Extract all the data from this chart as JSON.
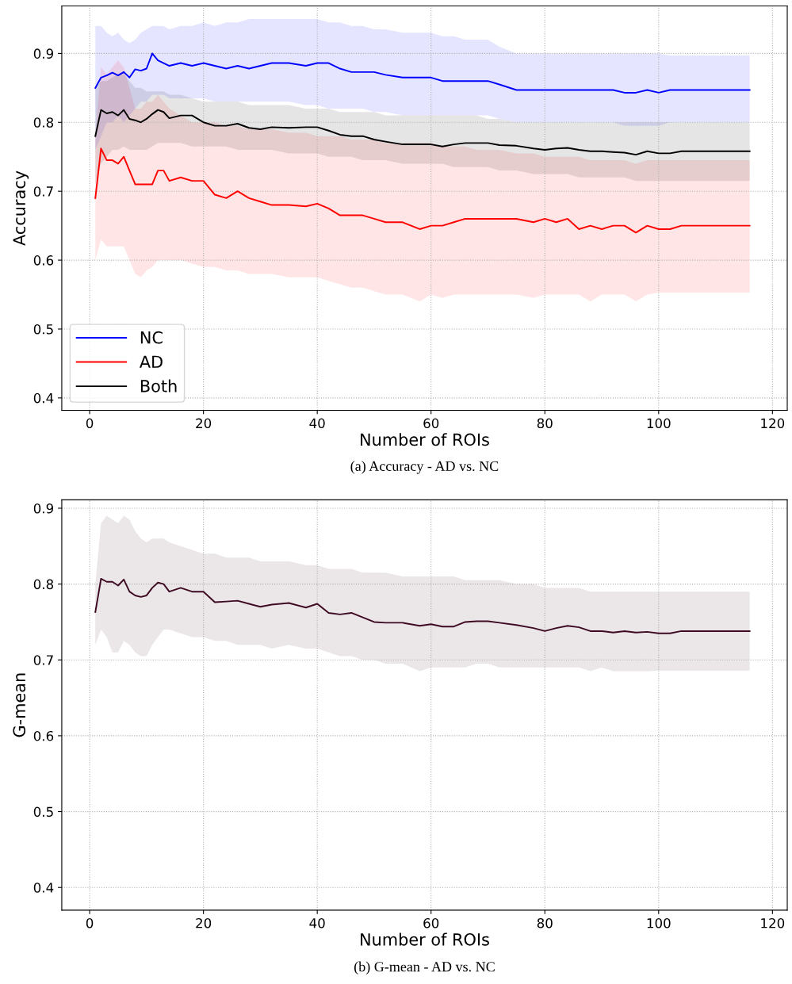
{
  "chart_data": [
    {
      "type": "line",
      "xlabel": "Number of ROIs",
      "ylabel": "Accuracy",
      "annotations": [
        "(a) Accuracy - AD vs. NC"
      ],
      "xlim": [
        -4.9,
        122.6
      ],
      "ylim": [
        0.382,
        0.969
      ],
      "xticks": [
        0,
        20,
        40,
        60,
        80,
        100,
        120
      ],
      "yticks": [
        0.4,
        0.5,
        0.6,
        0.7,
        0.8,
        0.9
      ],
      "grid": true,
      "legend": "bottom left",
      "line_style": "solid",
      "marker": "none",
      "x": [
        1,
        2,
        3,
        4,
        5,
        6,
        7,
        8,
        9,
        10,
        11,
        12,
        13,
        14,
        16,
        18,
        20,
        22,
        24,
        26,
        28,
        30,
        32,
        35,
        38,
        40,
        42,
        44,
        46,
        48,
        50,
        52,
        55,
        58,
        60,
        62,
        64,
        66,
        68,
        70,
        72,
        75,
        78,
        80,
        82,
        84,
        86,
        88,
        90,
        92,
        94,
        96,
        98,
        100,
        102,
        104,
        116
      ],
      "series": [
        {
          "name": "NC",
          "color": "#0000ff",
          "values": [
            0.85,
            0.865,
            0.868,
            0.872,
            0.868,
            0.873,
            0.865,
            0.877,
            0.875,
            0.878,
            0.9,
            0.89,
            0.886,
            0.882,
            0.886,
            0.882,
            0.886,
            0.882,
            0.878,
            0.882,
            0.878,
            0.882,
            0.886,
            0.886,
            0.882,
            0.886,
            0.886,
            0.878,
            0.873,
            0.873,
            0.873,
            0.869,
            0.865,
            0.865,
            0.865,
            0.86,
            0.86,
            0.86,
            0.86,
            0.86,
            0.855,
            0.847,
            0.847,
            0.847,
            0.847,
            0.847,
            0.847,
            0.847,
            0.847,
            0.847,
            0.843,
            0.843,
            0.847,
            0.843,
            0.847,
            0.847,
            0.847
          ],
          "upper": [
            0.94,
            0.94,
            0.93,
            0.925,
            0.93,
            0.92,
            0.915,
            0.92,
            0.93,
            0.935,
            0.94,
            0.94,
            0.94,
            0.935,
            0.94,
            0.94,
            0.945,
            0.94,
            0.945,
            0.945,
            0.95,
            0.95,
            0.95,
            0.95,
            0.95,
            0.95,
            0.945,
            0.945,
            0.94,
            0.94,
            0.935,
            0.935,
            0.93,
            0.93,
            0.93,
            0.925,
            0.925,
            0.92,
            0.92,
            0.92,
            0.91,
            0.9,
            0.9,
            0.9,
            0.9,
            0.9,
            0.9,
            0.9,
            0.9,
            0.9,
            0.9,
            0.9,
            0.9,
            0.9,
            0.897,
            0.897,
            0.897
          ],
          "lower": [
            0.76,
            0.78,
            0.8,
            0.8,
            0.81,
            0.8,
            0.81,
            0.82,
            0.83,
            0.83,
            0.84,
            0.84,
            0.84,
            0.835,
            0.835,
            0.835,
            0.835,
            0.83,
            0.83,
            0.83,
            0.83,
            0.83,
            0.83,
            0.83,
            0.825,
            0.825,
            0.82,
            0.82,
            0.82,
            0.82,
            0.815,
            0.815,
            0.81,
            0.81,
            0.81,
            0.81,
            0.81,
            0.81,
            0.81,
            0.81,
            0.805,
            0.8,
            0.8,
            0.8,
            0.8,
            0.8,
            0.8,
            0.8,
            0.8,
            0.8,
            0.795,
            0.795,
            0.795,
            0.795,
            0.8,
            0.8,
            0.8
          ]
        },
        {
          "name": "AD",
          "color": "#ff0000",
          "values": [
            0.69,
            0.762,
            0.745,
            0.745,
            0.74,
            0.75,
            0.73,
            0.71,
            0.71,
            0.71,
            0.71,
            0.73,
            0.73,
            0.715,
            0.72,
            0.715,
            0.715,
            0.695,
            0.69,
            0.7,
            0.69,
            0.685,
            0.68,
            0.68,
            0.678,
            0.682,
            0.675,
            0.665,
            0.665,
            0.665,
            0.66,
            0.655,
            0.655,
            0.645,
            0.65,
            0.65,
            0.655,
            0.66,
            0.66,
            0.66,
            0.66,
            0.66,
            0.655,
            0.66,
            0.655,
            0.66,
            0.645,
            0.65,
            0.645,
            0.65,
            0.65,
            0.64,
            0.65,
            0.645,
            0.645,
            0.65,
            0.65
          ],
          "upper": [
            0.78,
            0.88,
            0.87,
            0.88,
            0.89,
            0.88,
            0.85,
            0.82,
            0.82,
            0.83,
            0.83,
            0.84,
            0.83,
            0.82,
            0.81,
            0.8,
            0.8,
            0.8,
            0.795,
            0.795,
            0.79,
            0.79,
            0.79,
            0.785,
            0.785,
            0.78,
            0.78,
            0.78,
            0.775,
            0.775,
            0.775,
            0.77,
            0.77,
            0.77,
            0.77,
            0.765,
            0.765,
            0.765,
            0.76,
            0.76,
            0.76,
            0.755,
            0.755,
            0.75,
            0.75,
            0.75,
            0.75,
            0.745,
            0.745,
            0.745,
            0.745,
            0.74,
            0.745,
            0.745,
            0.745,
            0.745,
            0.745
          ],
          "lower": [
            0.6,
            0.63,
            0.62,
            0.62,
            0.62,
            0.62,
            0.6,
            0.58,
            0.575,
            0.585,
            0.59,
            0.6,
            0.6,
            0.6,
            0.6,
            0.595,
            0.59,
            0.59,
            0.585,
            0.585,
            0.58,
            0.58,
            0.58,
            0.575,
            0.575,
            0.575,
            0.57,
            0.565,
            0.56,
            0.56,
            0.555,
            0.55,
            0.55,
            0.54,
            0.55,
            0.545,
            0.55,
            0.55,
            0.55,
            0.55,
            0.55,
            0.55,
            0.545,
            0.55,
            0.55,
            0.55,
            0.55,
            0.54,
            0.55,
            0.55,
            0.55,
            0.54,
            0.55,
            0.553,
            0.553,
            0.553,
            0.553
          ]
        },
        {
          "name": "Both",
          "color": "#000000",
          "values": [
            0.78,
            0.818,
            0.813,
            0.815,
            0.81,
            0.818,
            0.805,
            0.803,
            0.8,
            0.805,
            0.812,
            0.818,
            0.815,
            0.806,
            0.81,
            0.81,
            0.8,
            0.795,
            0.795,
            0.798,
            0.792,
            0.79,
            0.793,
            0.792,
            0.793,
            0.793,
            0.788,
            0.782,
            0.78,
            0.78,
            0.775,
            0.772,
            0.768,
            0.768,
            0.768,
            0.765,
            0.768,
            0.77,
            0.77,
            0.77,
            0.767,
            0.766,
            0.762,
            0.76,
            0.762,
            0.763,
            0.76,
            0.758,
            0.758,
            0.757,
            0.756,
            0.753,
            0.758,
            0.755,
            0.755,
            0.758,
            0.758
          ],
          "upper": [
            0.85,
            0.86,
            0.86,
            0.865,
            0.87,
            0.87,
            0.86,
            0.85,
            0.85,
            0.845,
            0.845,
            0.845,
            0.845,
            0.84,
            0.84,
            0.835,
            0.83,
            0.83,
            0.83,
            0.83,
            0.825,
            0.825,
            0.825,
            0.825,
            0.82,
            0.82,
            0.82,
            0.815,
            0.815,
            0.815,
            0.815,
            0.81,
            0.81,
            0.81,
            0.81,
            0.81,
            0.81,
            0.81,
            0.81,
            0.805,
            0.805,
            0.8,
            0.8,
            0.8,
            0.8,
            0.8,
            0.8,
            0.8,
            0.8,
            0.8,
            0.8,
            0.8,
            0.8,
            0.8,
            0.8,
            0.8,
            0.8
          ],
          "lower": [
            0.71,
            0.74,
            0.75,
            0.76,
            0.76,
            0.765,
            0.76,
            0.76,
            0.76,
            0.76,
            0.765,
            0.77,
            0.77,
            0.77,
            0.77,
            0.765,
            0.765,
            0.765,
            0.765,
            0.76,
            0.76,
            0.76,
            0.76,
            0.755,
            0.755,
            0.755,
            0.75,
            0.75,
            0.75,
            0.745,
            0.745,
            0.745,
            0.74,
            0.74,
            0.74,
            0.74,
            0.735,
            0.735,
            0.735,
            0.735,
            0.73,
            0.73,
            0.725,
            0.725,
            0.725,
            0.725,
            0.72,
            0.72,
            0.72,
            0.72,
            0.72,
            0.715,
            0.715,
            0.715,
            0.715,
            0.715,
            0.715
          ]
        }
      ]
    },
    {
      "type": "line",
      "xlabel": "Number of ROIs",
      "ylabel": "G-mean",
      "annotations": [
        "(b) G-mean - AD vs. NC"
      ],
      "xlim": [
        -4.9,
        122.6
      ],
      "ylim": [
        0.37,
        0.911
      ],
      "xticks": [
        0,
        20,
        40,
        60,
        80,
        100,
        120
      ],
      "yticks": [
        0.4,
        0.5,
        0.6,
        0.7,
        0.8,
        0.9
      ],
      "grid": true,
      "line_style": "solid",
      "marker": "none",
      "x": [
        1,
        2,
        3,
        4,
        5,
        6,
        7,
        8,
        9,
        10,
        11,
        12,
        13,
        14,
        16,
        18,
        20,
        22,
        24,
        26,
        28,
        30,
        32,
        35,
        38,
        40,
        42,
        44,
        46,
        48,
        50,
        52,
        55,
        58,
        60,
        62,
        64,
        66,
        68,
        70,
        72,
        75,
        78,
        80,
        82,
        84,
        86,
        88,
        90,
        92,
        94,
        96,
        98,
        100,
        102,
        104,
        116
      ],
      "series": [
        {
          "color": "#3d0a22",
          "values": [
            0.763,
            0.807,
            0.803,
            0.803,
            0.798,
            0.806,
            0.79,
            0.785,
            0.783,
            0.785,
            0.795,
            0.802,
            0.8,
            0.79,
            0.795,
            0.79,
            0.79,
            0.776,
            0.777,
            0.778,
            0.774,
            0.77,
            0.773,
            0.775,
            0.769,
            0.774,
            0.762,
            0.76,
            0.762,
            0.756,
            0.75,
            0.749,
            0.749,
            0.745,
            0.747,
            0.744,
            0.744,
            0.75,
            0.751,
            0.751,
            0.749,
            0.746,
            0.742,
            0.738,
            0.742,
            0.745,
            0.743,
            0.738,
            0.738,
            0.736,
            0.738,
            0.736,
            0.737,
            0.735,
            0.735,
            0.738,
            0.738
          ],
          "upper": [
            0.8,
            0.88,
            0.89,
            0.885,
            0.88,
            0.89,
            0.885,
            0.87,
            0.86,
            0.855,
            0.86,
            0.86,
            0.86,
            0.855,
            0.85,
            0.845,
            0.84,
            0.84,
            0.835,
            0.835,
            0.835,
            0.83,
            0.83,
            0.83,
            0.825,
            0.825,
            0.82,
            0.82,
            0.82,
            0.815,
            0.815,
            0.815,
            0.81,
            0.81,
            0.81,
            0.81,
            0.81,
            0.805,
            0.805,
            0.805,
            0.805,
            0.8,
            0.8,
            0.795,
            0.795,
            0.795,
            0.795,
            0.79,
            0.79,
            0.79,
            0.79,
            0.79,
            0.79,
            0.79,
            0.79,
            0.79,
            0.79
          ],
          "lower": [
            0.72,
            0.74,
            0.73,
            0.71,
            0.71,
            0.725,
            0.72,
            0.71,
            0.705,
            0.705,
            0.72,
            0.73,
            0.74,
            0.74,
            0.735,
            0.73,
            0.73,
            0.725,
            0.725,
            0.72,
            0.72,
            0.72,
            0.715,
            0.72,
            0.715,
            0.715,
            0.71,
            0.705,
            0.705,
            0.7,
            0.7,
            0.695,
            0.695,
            0.685,
            0.69,
            0.69,
            0.69,
            0.69,
            0.695,
            0.695,
            0.69,
            0.69,
            0.69,
            0.69,
            0.69,
            0.69,
            0.69,
            0.685,
            0.69,
            0.685,
            0.685,
            0.685,
            0.685,
            0.686,
            0.686,
            0.686,
            0.686
          ]
        }
      ]
    }
  ]
}
